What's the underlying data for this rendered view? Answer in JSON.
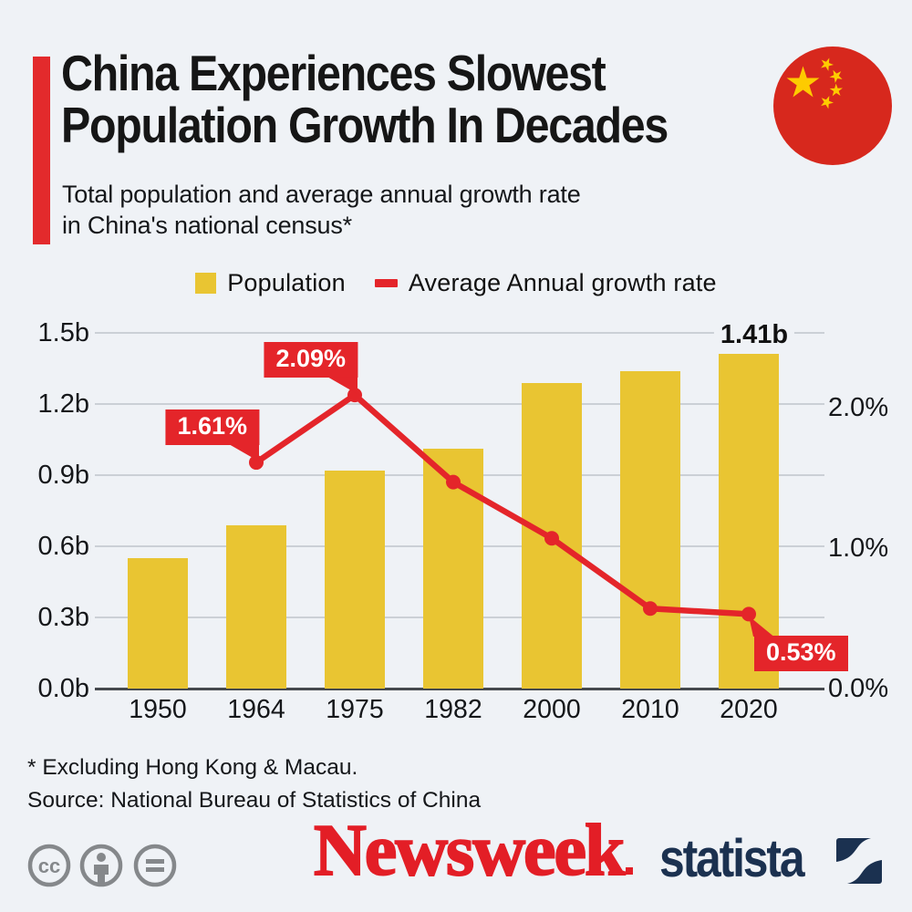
{
  "header": {
    "title_line1": "China Experiences Slowest",
    "title_line2": "Population Growth In Decades",
    "subtitle_line1": "Total population and average annual growth rate",
    "subtitle_line2": "in China's national census*",
    "flag_icon": "china-flag-icon"
  },
  "legend": {
    "population_label": "Population",
    "growth_label": "Average Annual growth rate"
  },
  "chart_data": {
    "type": "bar+line",
    "categories": [
      "1950",
      "1964",
      "1975",
      "1982",
      "2000",
      "2010",
      "2020"
    ],
    "series": [
      {
        "name": "Population",
        "chart": "bar",
        "unit": "billions",
        "color": "#e9c532",
        "values": [
          0.55,
          0.69,
          0.92,
          1.01,
          1.29,
          1.34,
          1.41
        ]
      },
      {
        "name": "Average Annual growth rate",
        "chart": "line",
        "unit": "percent",
        "color": "#e4252a",
        "values": [
          null,
          1.61,
          2.09,
          1.47,
          1.07,
          0.57,
          0.53
        ]
      }
    ],
    "left_axis": {
      "ticks": [
        {
          "label": "0.0b",
          "value": 0.0
        },
        {
          "label": "0.3b",
          "value": 0.3
        },
        {
          "label": "0.6b",
          "value": 0.6
        },
        {
          "label": "0.9b",
          "value": 0.9
        },
        {
          "label": "1.2b",
          "value": 1.2
        },
        {
          "label": "1.5b",
          "value": 1.5
        }
      ],
      "min": 0.0,
      "max": 1.5
    },
    "right_axis": {
      "ticks": [
        {
          "label": "0.0%",
          "value": 0.0
        },
        {
          "label": "1.0%",
          "value": 1.0
        },
        {
          "label": "2.0%",
          "value": 2.0
        }
      ],
      "min": 0.0,
      "max": 2.0
    },
    "grid": true,
    "legend_position": "top",
    "annotations": [
      {
        "text": "1.61%",
        "category": "1964",
        "series": "line",
        "style": "red-callout",
        "placement": "upper-left"
      },
      {
        "text": "2.09%",
        "category": "1975",
        "series": "line",
        "style": "red-callout",
        "placement": "upper-left"
      },
      {
        "text": "0.53%",
        "category": "2020",
        "series": "line",
        "style": "red-callout",
        "placement": "lower-right"
      },
      {
        "text": "1.41b",
        "category": "2020",
        "series": "bar",
        "style": "bold-text",
        "placement": "above"
      }
    ]
  },
  "footer": {
    "footnote": "* Excluding Hong Kong & Macau.",
    "source": "Source: National Bureau of Statistics of China"
  },
  "logos": {
    "cc_icons": [
      "cc-icon",
      "cc-by-person-icon",
      "cc-nd-equals-icon"
    ],
    "newsweek": "Newsweek",
    "statista": "statista"
  },
  "colors": {
    "background": "#eff2f6",
    "accent_red": "#e4252a",
    "bar_yellow": "#e9c532",
    "statista_navy": "#1b3150",
    "icon_gray": "#85888b",
    "text": "#15171a",
    "flag_red": "#d7281d",
    "flag_yellow": "#fecb00",
    "newsweek_red": "#e31e26"
  }
}
